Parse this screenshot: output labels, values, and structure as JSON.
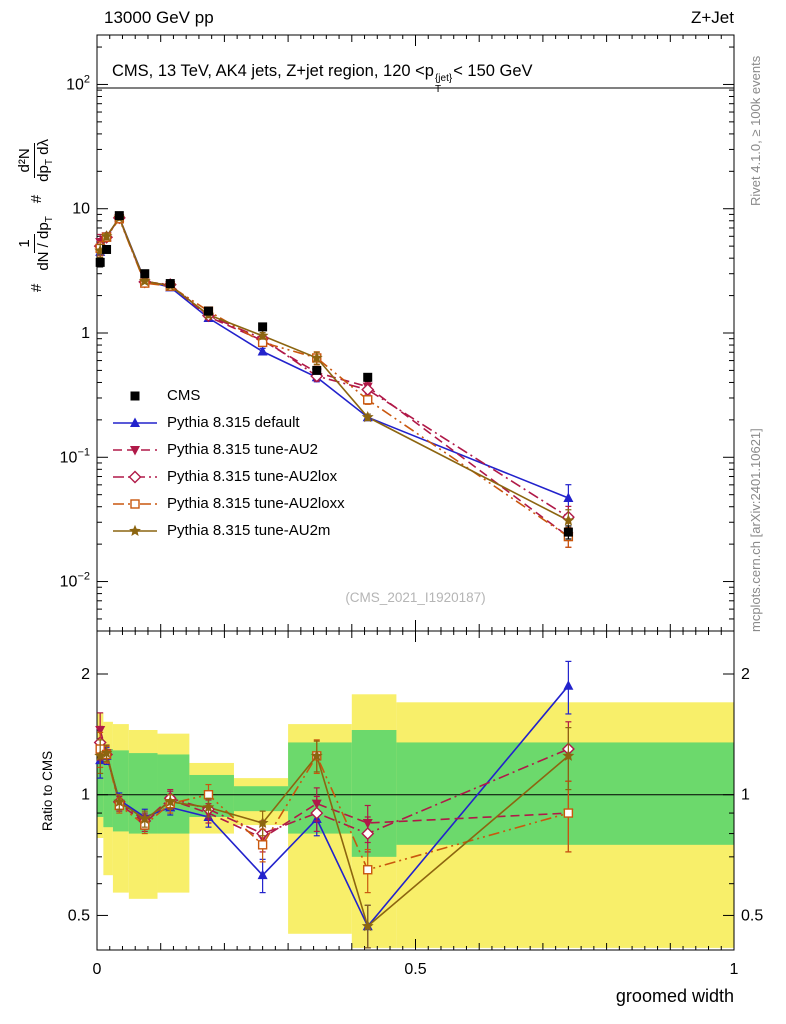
{
  "header": {
    "left": "13000 GeV pp",
    "right": "Z+Jet"
  },
  "side_notes": {
    "right_top": "Rivet 4.1.0, ≥ 100k events",
    "right_bottom": "mcplots.cern.ch [arXiv:2401.10621]"
  },
  "main": {
    "title_pre": "CMS, 13 TeV, AK4 jets, Z+jet region, 120 <p",
    "title_sup": "{jet}",
    "title_sub": "T",
    "title_post": "< 150 GeV",
    "watermark": "(CMS_2021_I1920187)"
  },
  "ylabel_parts": {
    "hash1": "#",
    "frac1_num": "1",
    "frac1_den_pre": "dN / dp",
    "frac1_den_sub": "T",
    "hash2": "#",
    "frac2_num": "d²N",
    "frac2_den_pre": "dp",
    "frac2_den_sub": "T",
    "frac2_den_post": " dλ"
  },
  "chart_data": {
    "type": "line",
    "title": "CMS, 13 TeV, AK4 jets, Z+jet region, 120 <p_T^{jet}< 150 GeV",
    "xlabel": "groomed width",
    "ylabel_main": "# 1/(dN/dp_T) d²N/(dp_T dλ)",
    "ylabel_ratio": "Ratio to CMS",
    "watermark": "(CMS_2021_I1920187)",
    "xlim": [
      0,
      1
    ],
    "main_ylim": [
      0.004,
      250
    ],
    "ratio_ylim": [
      0.41,
      2.56
    ],
    "xticks": [
      0,
      0.5,
      1
    ],
    "main_ytick_exponents": [
      2,
      1,
      0,
      -1,
      -2
    ],
    "ratio_yticks": [
      0.5,
      1,
      2
    ],
    "legend_position": "middle-left",
    "x": [
      0.005,
      0.015,
      0.035,
      0.075,
      0.115,
      0.175,
      0.26,
      0.345,
      0.425,
      0.74
    ],
    "series": [
      {
        "name": "CMS",
        "slug": "cms",
        "color": "#000000",
        "marker": "square-filled",
        "line": "none",
        "values": [
          3.7,
          4.7,
          8.8,
          3.0,
          2.5,
          1.5,
          1.12,
          0.5,
          0.44,
          0.025
        ],
        "rel_err": [
          0.08,
          0.06,
          0.04,
          0.04,
          0.04,
          0.05,
          0.05,
          0.06,
          0.07,
          0.12
        ]
      },
      {
        "name": "Pythia 8.315 default",
        "slug": "pythia-default",
        "color": "#2222cc",
        "marker": "triangle-up-filled",
        "line": "solid",
        "values": [
          4.5,
          5.9,
          8.5,
          2.64,
          2.33,
          1.32,
          0.71,
          0.44,
          0.21,
          0.047
        ],
        "ratio": [
          1.22,
          1.25,
          0.97,
          0.88,
          0.93,
          0.88,
          0.63,
          0.87,
          0.47,
          1.87
        ],
        "ratio_err": [
          0.12,
          0.06,
          0.04,
          0.04,
          0.04,
          0.05,
          0.06,
          0.08,
          0.06,
          0.28
        ]
      },
      {
        "name": "Pythia 8.315 tune-AU2",
        "slug": "pythia-tune-au2",
        "color": "#b01948",
        "marker": "triangle-down-filled",
        "line": "dashed",
        "values": [
          5.4,
          6.0,
          8.4,
          2.55,
          2.43,
          1.35,
          0.87,
          0.48,
          0.37,
          0.023
        ],
        "ratio": [
          1.45,
          1.27,
          0.95,
          0.85,
          0.97,
          0.9,
          0.78,
          0.95,
          0.85,
          0.9
        ],
        "ratio_err": [
          0.15,
          0.06,
          0.04,
          0.04,
          0.05,
          0.05,
          0.06,
          0.09,
          0.09,
          0.18
        ]
      },
      {
        "name": "Pythia 8.315 tune-AU2lox",
        "slug": "pythia-tune-au2lox",
        "color": "#b01948",
        "marker": "diamond-open",
        "line": "dashdot",
        "values": [
          5.0,
          5.9,
          8.45,
          2.58,
          2.45,
          1.38,
          0.9,
          0.45,
          0.35,
          0.033
        ],
        "ratio": [
          1.35,
          1.26,
          0.96,
          0.86,
          0.98,
          0.92,
          0.8,
          0.9,
          0.8,
          1.3
        ],
        "ratio_err": [
          0.13,
          0.06,
          0.04,
          0.04,
          0.05,
          0.05,
          0.06,
          0.09,
          0.08,
          0.22
        ]
      },
      {
        "name": "Pythia 8.315 tune-AU2loxx",
        "slug": "pythia-tune-au2loxx",
        "color": "#c9570e",
        "marker": "square-open",
        "line": "dashdotdot",
        "values": [
          4.8,
          5.9,
          8.3,
          2.52,
          2.38,
          1.5,
          0.84,
          0.63,
          0.29,
          0.023
        ],
        "ratio": [
          1.3,
          1.26,
          0.94,
          0.84,
          0.95,
          1.0,
          0.75,
          1.25,
          0.65,
          0.9
        ],
        "ratio_err": [
          0.13,
          0.06,
          0.04,
          0.04,
          0.05,
          0.06,
          0.07,
          0.12,
          0.08,
          0.18
        ]
      },
      {
        "name": "Pythia 8.315 tune-AU2m",
        "slug": "pythia-tune-au2m",
        "color": "#8c6510",
        "marker": "star-filled",
        "line": "solid",
        "values": [
          4.6,
          6.0,
          8.45,
          2.61,
          2.4,
          1.4,
          0.95,
          0.63,
          0.21,
          0.031
        ],
        "ratio": [
          1.25,
          1.27,
          0.96,
          0.87,
          0.96,
          0.93,
          0.85,
          1.25,
          0.47,
          1.25
        ],
        "ratio_err": [
          0.12,
          0.06,
          0.04,
          0.04,
          0.04,
          0.05,
          0.06,
          0.11,
          0.06,
          0.22
        ]
      }
    ],
    "ratio_bands": [
      {
        "x0": 0.0,
        "x1": 0.01,
        "yellow": [
          0.78,
          1.6
        ],
        "green": [
          0.88,
          1.3
        ]
      },
      {
        "x0": 0.01,
        "x1": 0.025,
        "yellow": [
          0.63,
          1.52
        ],
        "green": [
          0.83,
          1.3
        ]
      },
      {
        "x0": 0.025,
        "x1": 0.05,
        "yellow": [
          0.57,
          1.5
        ],
        "green": [
          0.81,
          1.29
        ]
      },
      {
        "x0": 0.05,
        "x1": 0.095,
        "yellow": [
          0.55,
          1.45
        ],
        "green": [
          0.8,
          1.27
        ]
      },
      {
        "x0": 0.095,
        "x1": 0.145,
        "yellow": [
          0.57,
          1.42
        ],
        "green": [
          0.8,
          1.26
        ]
      },
      {
        "x0": 0.145,
        "x1": 0.215,
        "yellow": [
          0.8,
          1.2
        ],
        "green": [
          0.88,
          1.12
        ]
      },
      {
        "x0": 0.215,
        "x1": 0.3,
        "yellow": [
          0.84,
          1.1
        ],
        "green": [
          0.91,
          1.05
        ]
      },
      {
        "x0": 0.3,
        "x1": 0.4,
        "yellow": [
          0.45,
          1.5
        ],
        "green": [
          0.8,
          1.35
        ]
      },
      {
        "x0": 0.4,
        "x1": 0.47,
        "yellow": [
          0.33,
          1.78
        ],
        "green": [
          0.7,
          1.45
        ]
      },
      {
        "x0": 0.47,
        "x1": 1.0,
        "yellow": [
          0.35,
          1.7
        ],
        "green": [
          0.75,
          1.35
        ]
      }
    ],
    "band_colors": {
      "yellow": "#f8ef6a",
      "green": "#6cd96c"
    }
  }
}
